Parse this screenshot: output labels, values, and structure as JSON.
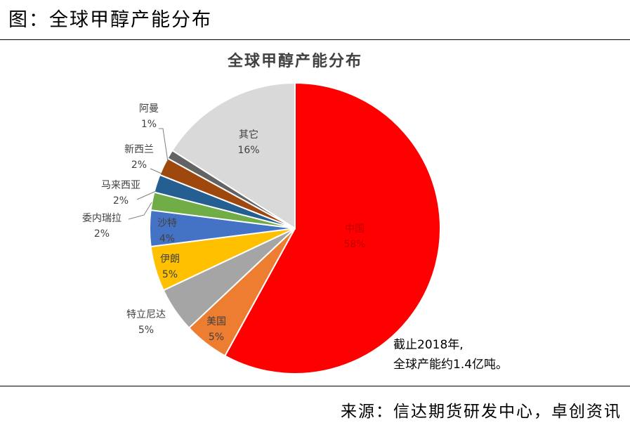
{
  "figure": {
    "caption": "图：全球甲醇产能分布",
    "source": "来源：信达期货研发中心，卓创资讯"
  },
  "chart_data": {
    "type": "pie",
    "title": "全球甲醇产能分布",
    "slices": [
      {
        "name": "中国",
        "value": 58,
        "label": "58%",
        "color": "#ff0000"
      },
      {
        "name": "美国",
        "value": 5,
        "label": "5%",
        "color": "#ed7d31"
      },
      {
        "name": "特立尼达",
        "value": 5,
        "label": "5%",
        "color": "#a5a5a5"
      },
      {
        "name": "伊朗",
        "value": 5,
        "label": "5%",
        "color": "#ffc000"
      },
      {
        "name": "沙特",
        "value": 4,
        "label": "4%",
        "color": "#4472c4"
      },
      {
        "name": "委内瑞拉",
        "value": 2,
        "label": "2%",
        "color": "#70ad47"
      },
      {
        "name": "马来西亚",
        "value": 2,
        "label": "2%",
        "color": "#255e91"
      },
      {
        "name": "新西兰",
        "value": 2,
        "label": "2%",
        "color": "#9e480e"
      },
      {
        "name": "阿曼",
        "value": 1,
        "label": "1%",
        "color": "#636363"
      },
      {
        "name": "其它",
        "value": 16,
        "label": "16%",
        "color": "#d9d9d9"
      }
    ],
    "annotation": [
      "截止2018年,",
      "全球产能约1.4亿吨。"
    ]
  }
}
